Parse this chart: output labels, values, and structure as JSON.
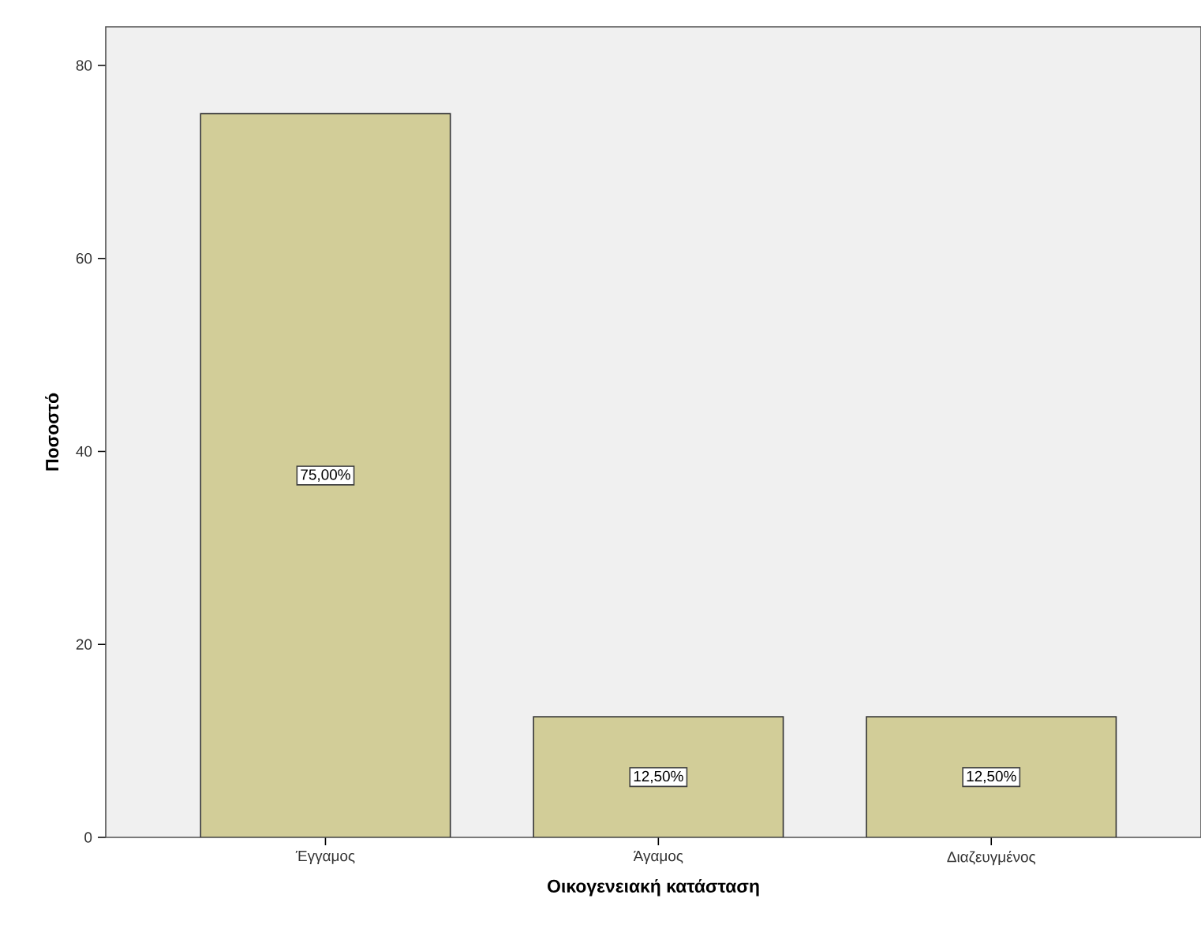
{
  "chart_data": {
    "type": "bar",
    "xlabel": "Οικογενειακή κατάσταση",
    "ylabel": "Ποσοστό",
    "categories": [
      "Έγγαμος",
      "Άγαμος",
      "Διαζευγμένος"
    ],
    "values": [
      75,
      12.5,
      12.5
    ],
    "value_labels": [
      "75,00%",
      "12,50%",
      "12,50%"
    ],
    "color": "#d2cd98",
    "ylim": [
      0,
      84
    ],
    "yticks": [
      0,
      20,
      40,
      60,
      80
    ],
    "grid": false
  }
}
